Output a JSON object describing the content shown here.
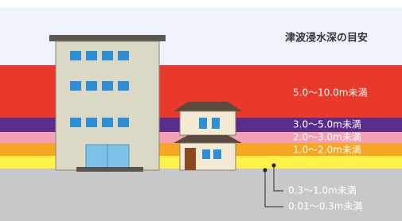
{
  "title": "津波浸水深の目安",
  "depth_labels": [
    "5.0～10.0m未満",
    "3.0～5.0m未満",
    "2.0～3.0m未満",
    "1.0～2.0m未満",
    "0.3～1.0m未満",
    "0.01～0.3m未満"
  ]
}
